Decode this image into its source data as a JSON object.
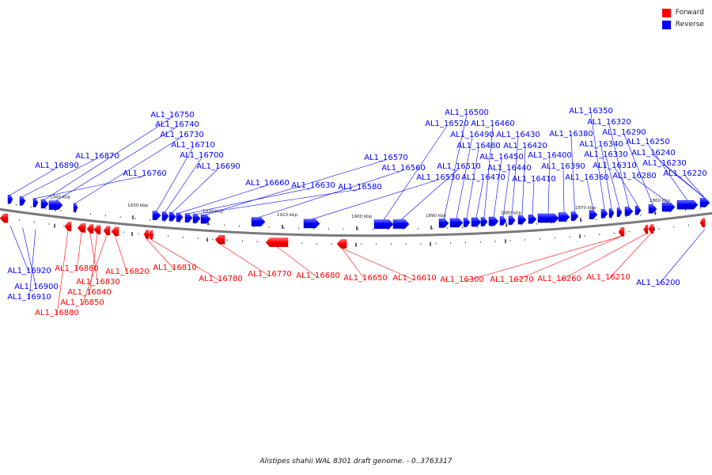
{
  "legend": {
    "forward": {
      "label": "Forward",
      "color": "#ff0000"
    },
    "reverse": {
      "label": "Reverse",
      "color": "#0000ff"
    }
  },
  "caption": "Alistipes shahii WAL 8301 draft genome. - 0..3763317",
  "axis_ticks": [
    "1940 kbp",
    "1930 kbp",
    "1920 kbp",
    "1910 kbp",
    "1900 kbp",
    "1890 kbp",
    "1880 kbp",
    "1870 kbp",
    "1860 kbp"
  ],
  "genes_reverse_above": [
    "AL1_16890",
    "AL1_16870",
    "AL1_16760",
    "AL1_16750",
    "AL1_16740",
    "AL1_16730",
    "AL1_16710",
    "AL1_16700",
    "AL1_16690",
    "AL1_16660",
    "AL1_16630",
    "AL1_16580",
    "AL1_16570",
    "AL1_16560",
    "AL1_16530",
    "AL1_16520",
    "AL1_16510",
    "AL1_16500",
    "AL1_16490",
    "AL1_16480",
    "AL1_16470",
    "AL1_16460",
    "AL1_16450",
    "AL1_16440",
    "AL1_16430",
    "AL1_16420",
    "AL1_16410",
    "AL1_16400",
    "AL1_16390",
    "AL1_16380",
    "AL1_16360",
    "AL1_16350",
    "AL1_16340",
    "AL1_16330",
    "AL1_16320",
    "AL1_16310",
    "AL1_16290",
    "AL1_16280",
    "AL1_16250",
    "AL1_16240",
    "AL1_16230",
    "AL1_16220"
  ],
  "genes_reverse_below": [
    "AL1_16920",
    "AL1_16900",
    "AL1_16910",
    "AL1_16200"
  ],
  "genes_forward_below": [
    "AL1_16860",
    "AL1_16830",
    "AL1_16820",
    "AL1_16840",
    "AL1_16850",
    "AL1_16880",
    "AL1_16810",
    "AL1_16780",
    "AL1_16770",
    "AL1_16680",
    "AL1_16650",
    "AL1_16610",
    "AL1_16300",
    "AL1_16270",
    "AL1_16260",
    "AL1_16210"
  ]
}
